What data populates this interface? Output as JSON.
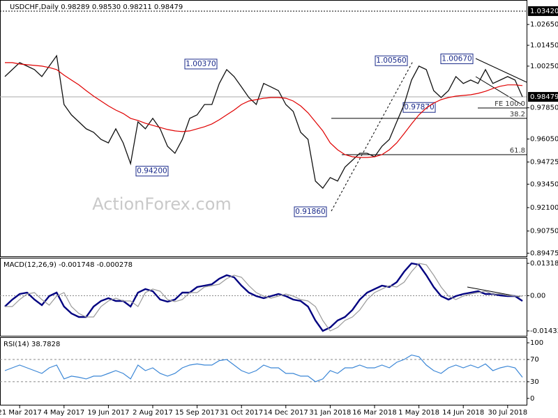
{
  "chart_data": [
    {
      "type": "line",
      "title": "USDCHF,Daily  0.98289 0.98530 0.98211 0.98479",
      "watermark": "ActionForex.com",
      "ylim": [
        0.8929,
        1.0406
      ],
      "yticks": [
        {
          "value": 1.0265,
          "label": "1.02650"
        },
        {
          "value": 1.0145,
          "label": "1.01450"
        },
        {
          "value": 1.0025,
          "label": "1.00250"
        },
        {
          "value": 0.9785,
          "label": "0.97850"
        },
        {
          "value": 0.9605,
          "label": "0.96050"
        },
        {
          "value": 0.94725,
          "label": "0.94725"
        },
        {
          "value": 0.9345,
          "label": "0.93450"
        },
        {
          "value": 0.921,
          "label": "0.92100"
        },
        {
          "value": 0.9075,
          "label": "0.90750"
        },
        {
          "value": 0.89475,
          "label": "0.89475"
        }
      ],
      "high_line": {
        "value": 1.0342,
        "label": "1.03420"
      },
      "last_price": {
        "value": 0.98479,
        "label": "0.98479"
      },
      "annotations": [
        {
          "value": 1.0037,
          "label": "1.00370"
        },
        {
          "value": 0.942,
          "label": "0.94200"
        },
        {
          "value": 0.9186,
          "label": "0.91860"
        },
        {
          "value": 1.0056,
          "label": "1.00560"
        },
        {
          "value": 0.9787,
          "label": "0.97870"
        },
        {
          "value": 1.0067,
          "label": "1.00670"
        }
      ],
      "fib_levels": [
        {
          "value": 0.9784,
          "label": "FE 100.0"
        },
        {
          "value": 0.9724,
          "label": "38.2"
        },
        {
          "value": 0.9515,
          "label": "61.8"
        }
      ],
      "series": [
        {
          "name": "Close",
          "color": "#111111",
          "values": [
            0.9965,
            1.0005,
            1.0045,
            1.0025,
            1.0005,
            0.9965,
            1.0025,
            1.0085,
            0.9804,
            0.9744,
            0.9704,
            0.9664,
            0.9644,
            0.9603,
            0.9583,
            0.9664,
            0.9583,
            0.9463,
            0.9704,
            0.9664,
            0.9724,
            0.9664,
            0.9563,
            0.9523,
            0.9603,
            0.9724,
            0.9744,
            0.9804,
            0.9804,
            0.9925,
            1.0005,
            0.9965,
            0.9905,
            0.9844,
            0.9804,
            0.9925,
            0.9905,
            0.9884,
            0.9804,
            0.9764,
            0.9644,
            0.9603,
            0.9363,
            0.9322,
            0.9383,
            0.9363,
            0.9443,
            0.9483,
            0.9523,
            0.9523,
            0.9503,
            0.9563,
            0.9603,
            0.9704,
            0.9804,
            0.9945,
            1.0025,
            1.0005,
            0.9884,
            0.9844,
            0.9884,
            0.9965,
            0.9925,
            0.9945,
            0.9925,
            1.0005,
            0.9925,
            0.9945,
            0.9965,
            0.9945,
            0.9848
          ]
        },
        {
          "name": "MA",
          "color": "#e00000",
          "values": [
            1.0045,
            1.0045,
            1.0037,
            1.0033,
            1.0029,
            1.0025,
            1.0017,
            1.0005,
            0.9973,
            0.9945,
            0.9917,
            0.9884,
            0.9852,
            0.9824,
            0.9796,
            0.9772,
            0.9752,
            0.9724,
            0.9712,
            0.9696,
            0.9684,
            0.9672,
            0.966,
            0.9652,
            0.9648,
            0.9652,
            0.9664,
            0.9676,
            0.9692,
            0.9716,
            0.9744,
            0.9772,
            0.9804,
            0.9824,
            0.9832,
            0.984,
            0.9844,
            0.9844,
            0.984,
            0.9824,
            0.9796,
            0.9756,
            0.9704,
            0.9652,
            0.9583,
            0.9543,
            0.9515,
            0.9503,
            0.9499,
            0.9499,
            0.9503,
            0.9515,
            0.9543,
            0.9583,
            0.9636,
            0.9692,
            0.9744,
            0.9784,
            0.9812,
            0.9832,
            0.9844,
            0.9852,
            0.9856,
            0.986,
            0.9868,
            0.988,
            0.9896,
            0.9909,
            0.9917,
            0.9917,
            0.9913
          ]
        }
      ]
    },
    {
      "type": "line",
      "title": "MACD(12,26,9) -0.001748 -0.000278",
      "ylim": [
        -0.016325,
        0.015454
      ],
      "yticks": [
        0.013184,
        {
          "value": 0,
          "label": "0.00"
        },
        -0.014339
      ],
      "series": [
        {
          "name": "MACD",
          "color": "#000080",
          "values": [
            -0.0044,
            -0.00156,
            0.00071,
            0.00128,
            -0.00156,
            -0.00383,
            -0.00014,
            0.00128,
            -0.0044,
            -0.00723,
            -0.00865,
            -0.00865,
            -0.0044,
            -0.00213,
            -0.00099,
            -0.00213,
            -0.00213,
            -0.0044,
            0.00128,
            0.0027,
            0.00184,
            -0.00156,
            -0.00241,
            -0.00156,
            0.00128,
            0.00128,
            0.00355,
            0.00411,
            0.00468,
            0.00695,
            0.00837,
            0.00752,
            0.00411,
            0.00128,
            -0.00014,
            -0.00099,
            -0.00014,
            0.00071,
            -0.00014,
            -0.00156,
            -0.00213,
            -0.0044,
            -0.01007,
            -0.01433,
            -0.01291,
            -0.01007,
            -0.00865,
            -0.00582,
            -0.00156,
            0.00128,
            0.0027,
            0.00411,
            0.00355,
            0.00553,
            0.00979,
            0.01319,
            0.01262,
            0.00837,
            0.00355,
            -0.00014,
            -0.00156,
            -0.00014,
            0.00071,
            0.00128,
            0.00184,
            0.00071,
            0.00071,
            0.00014,
            -0.00014,
            -0.00014,
            -0.00213
          ]
        },
        {
          "name": "Signal",
          "color": "#9a9a9a",
          "values": [
            -0.0044,
            -0.0044,
            -0.00156,
            0.00071,
            0.00128,
            -0.00156,
            -0.00383,
            -0.00014,
            0.00128,
            -0.0044,
            -0.00723,
            -0.00865,
            -0.00865,
            -0.0044,
            -0.00213,
            -0.00099,
            -0.00213,
            -0.00213,
            -0.0044,
            0.00128,
            0.0027,
            0.00184,
            -0.00156,
            -0.00241,
            -0.00156,
            0.00128,
            0.00128,
            0.00355,
            0.00411,
            0.00468,
            0.00695,
            0.00837,
            0.00752,
            0.00411,
            0.00128,
            -0.00014,
            -0.00099,
            -0.00014,
            0.00071,
            -0.00014,
            -0.00156,
            -0.00213,
            -0.0044,
            -0.01007,
            -0.01433,
            -0.01291,
            -0.01007,
            -0.00865,
            -0.00582,
            -0.00156,
            0.00128,
            0.0027,
            0.00411,
            0.00355,
            0.00553,
            0.00979,
            0.01319,
            0.01262,
            0.00837,
            0.00355,
            -0.00014,
            -0.00156,
            -0.00014,
            0.00071,
            0.00128,
            0.00184,
            0.00071,
            0.00071,
            0.00014,
            -0.00014,
            -0.00014
          ]
        }
      ]
    },
    {
      "type": "line",
      "title": "RSI(14) 38.7828",
      "ylim": [
        -12.7,
        110.1
      ],
      "yticks": [
        100,
        70,
        30,
        0
      ],
      "levels": [
        70,
        30
      ],
      "categories": [
        null,
        null,
        "21 Mar 2017",
        null,
        null,
        null,
        null,
        null,
        "4 May 2017",
        null,
        null,
        null,
        null,
        null,
        "19 Jun 2017",
        null,
        null,
        null,
        null,
        null,
        "2 Aug 2017",
        null,
        null,
        null,
        null,
        null,
        "15 Sep 2017",
        null,
        null,
        null,
        null,
        null,
        "31 Oct 2017",
        null,
        null,
        null,
        null,
        null,
        "14 Dec 2017",
        null,
        null,
        null,
        null,
        null,
        "31 Jan 2018",
        null,
        null,
        null,
        null,
        null,
        "16 Mar 2018",
        null,
        null,
        null,
        null,
        null,
        "1 May 2018",
        null,
        null,
        null,
        null,
        null,
        "14 Jun 2018",
        null,
        null,
        null,
        null,
        null,
        "30 Jul 2018",
        null,
        null
      ],
      "series": [
        {
          "name": "RSI",
          "color": "#3a86d6",
          "values": [
            50,
            55,
            60,
            55,
            50,
            45,
            55,
            60,
            35,
            40,
            38,
            35,
            40,
            40,
            45,
            50,
            45,
            35,
            60,
            50,
            55,
            45,
            40,
            45,
            55,
            60,
            62,
            60,
            60,
            68,
            70,
            60,
            50,
            45,
            50,
            60,
            55,
            55,
            45,
            45,
            40,
            40,
            30,
            35,
            50,
            45,
            55,
            55,
            60,
            55,
            55,
            60,
            55,
            65,
            70,
            78,
            75,
            60,
            50,
            45,
            55,
            60,
            55,
            60,
            55,
            62,
            50,
            55,
            58,
            55,
            38
          ]
        }
      ]
    }
  ]
}
